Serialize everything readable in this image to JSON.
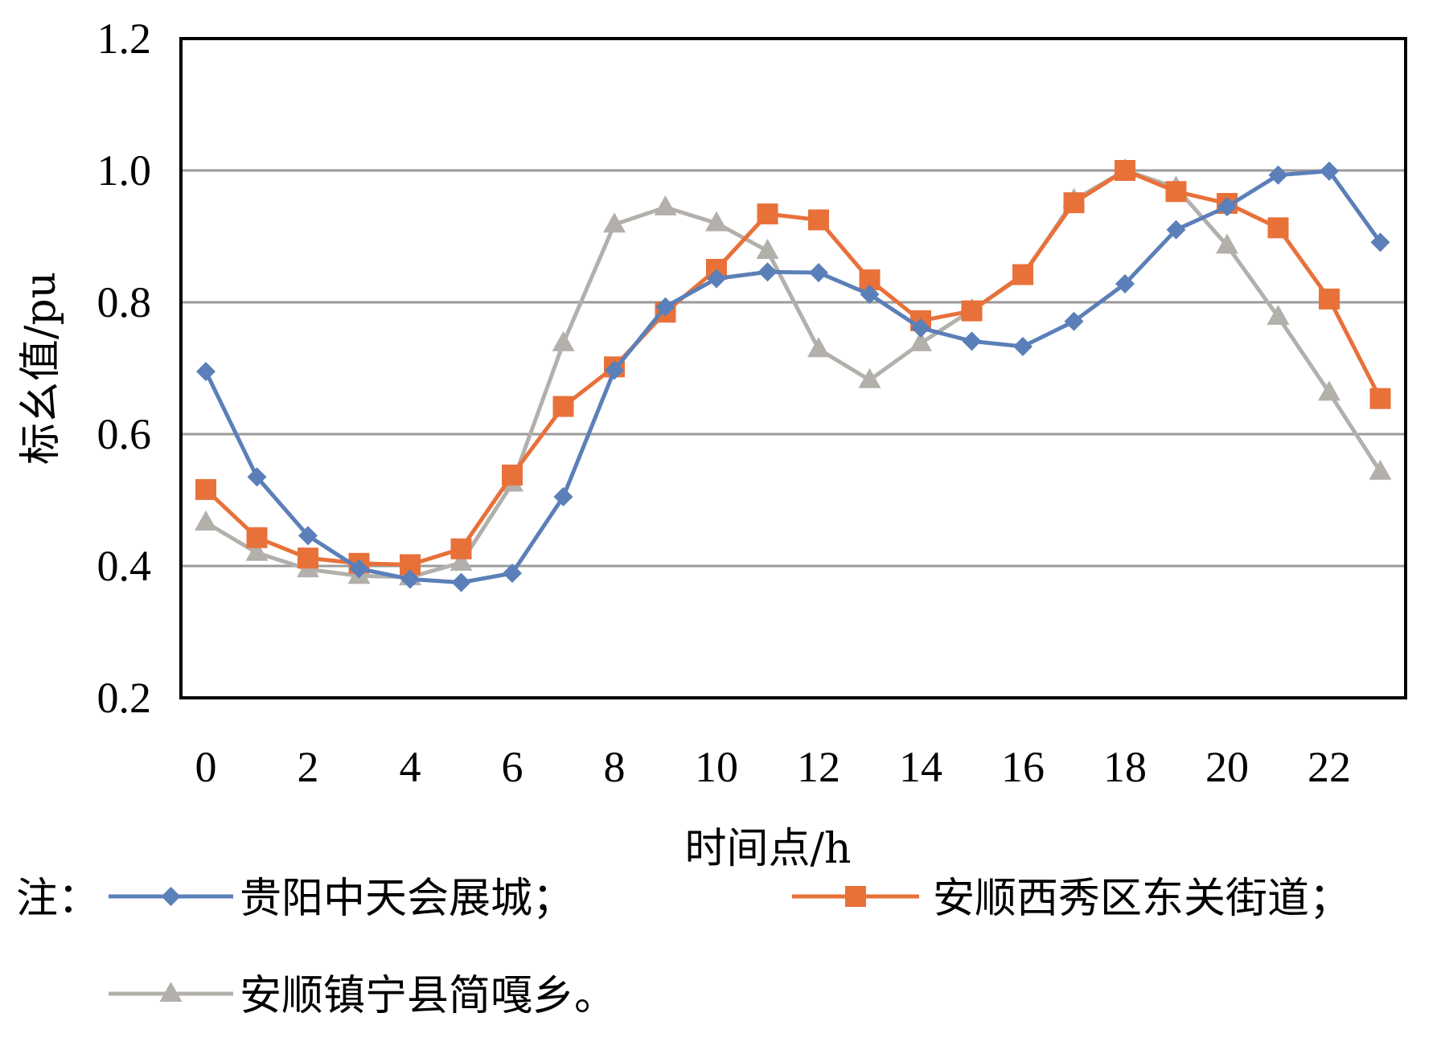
{
  "chart_data": {
    "type": "line",
    "title": "",
    "xlabel": "时间点/h",
    "ylabel": "标幺值/pu",
    "ylim": [
      0.2,
      1.2
    ],
    "yticks": [
      0.2,
      0.4,
      0.6,
      0.8,
      1.0,
      1.2
    ],
    "ytick_labels": [
      "0.2",
      "0.4",
      "0.6",
      "0.8",
      "1.0",
      "1.2"
    ],
    "xlim": [
      0,
      23
    ],
    "xticks": [
      0,
      2,
      4,
      6,
      8,
      10,
      12,
      14,
      16,
      18,
      20,
      22
    ],
    "xtick_labels": [
      "0",
      "2",
      "4",
      "6",
      "8",
      "10",
      "12",
      "14",
      "16",
      "18",
      "20",
      "22"
    ],
    "grid": "horizontal",
    "legend_position": "bottom",
    "x": [
      0,
      1,
      2,
      3,
      4,
      5,
      6,
      7,
      8,
      9,
      10,
      11,
      12,
      13,
      14,
      15,
      16,
      17,
      18,
      19,
      20,
      21,
      22,
      23
    ],
    "series": [
      {
        "name": "贵阳中天会展城",
        "color": "#5b7fb8",
        "marker": "diamond",
        "values": [
          0.695,
          0.535,
          0.446,
          0.396,
          0.38,
          0.375,
          0.389,
          0.505,
          0.697,
          0.793,
          0.836,
          0.846,
          0.845,
          0.812,
          0.761,
          0.741,
          0.733,
          0.771,
          0.828,
          0.91,
          0.945,
          0.993,
          0.999,
          0.891
        ]
      },
      {
        "name": "安顺西秀区东关街道",
        "color": "#e8713a",
        "marker": "square",
        "values": [
          0.516,
          0.443,
          0.412,
          0.404,
          0.402,
          0.426,
          0.538,
          0.642,
          0.702,
          0.785,
          0.85,
          0.934,
          0.925,
          0.834,
          0.772,
          0.787,
          0.842,
          0.951,
          1.0,
          0.968,
          0.95,
          0.913,
          0.805,
          0.654
        ]
      },
      {
        "name": "安顺镇宁县简嘎乡",
        "color": "#b3b0ac",
        "marker": "triangle",
        "values": [
          0.466,
          0.42,
          0.395,
          0.385,
          0.383,
          0.405,
          0.525,
          0.738,
          0.918,
          0.944,
          0.92,
          0.878,
          0.729,
          0.682,
          0.738,
          0.788,
          0.84,
          0.955,
          1.0,
          0.974,
          0.886,
          0.778,
          0.663,
          0.543
        ]
      }
    ],
    "legend": {
      "prefix": "注：",
      "entries": [
        "贵阳中天会展城；",
        "安顺西秀区东关街道；",
        "安顺镇宁县简嘎乡。"
      ]
    }
  }
}
